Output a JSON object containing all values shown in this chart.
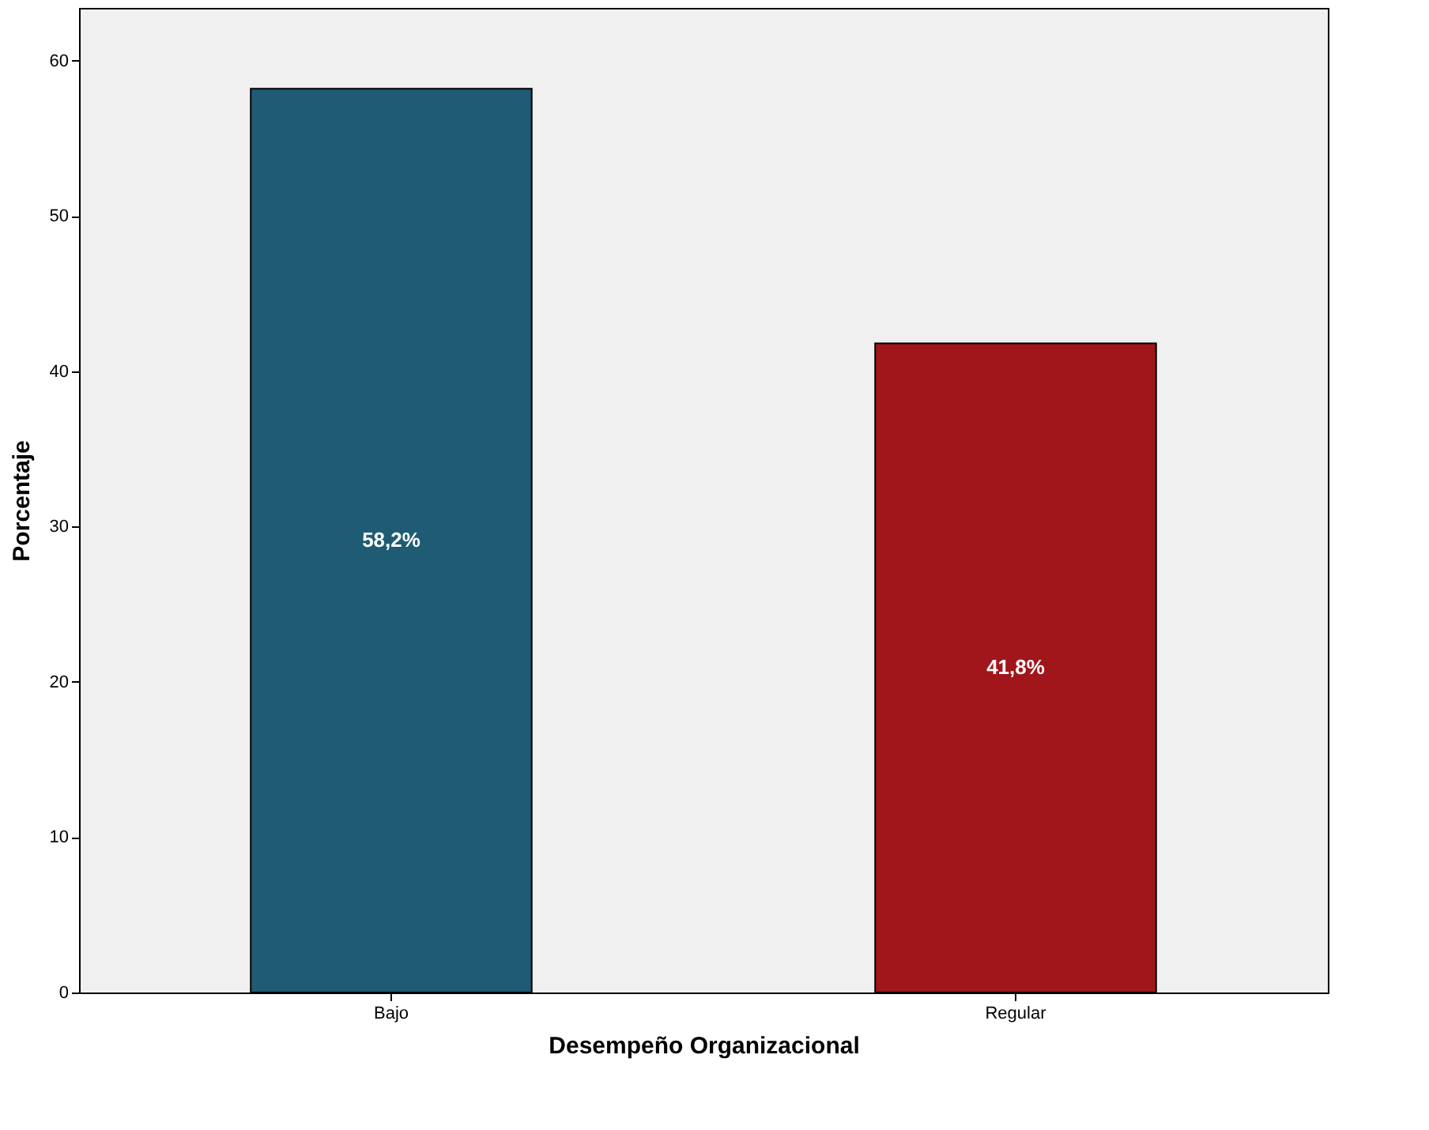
{
  "chart_data": {
    "type": "bar",
    "xlabel": "Desempeño Organizacional",
    "ylabel": "Porcentaje",
    "categories": [
      "Bajo",
      "Regular"
    ],
    "values": [
      58.2,
      41.8
    ],
    "colors": [
      "#1f5b73",
      "#a0161b"
    ],
    "value_labels": [
      "58,2%",
      "41,8%"
    ],
    "ylim": [
      0,
      63.4
    ],
    "yticks": [
      0,
      10,
      20,
      30,
      40,
      50,
      60
    ],
    "grid": false
  }
}
